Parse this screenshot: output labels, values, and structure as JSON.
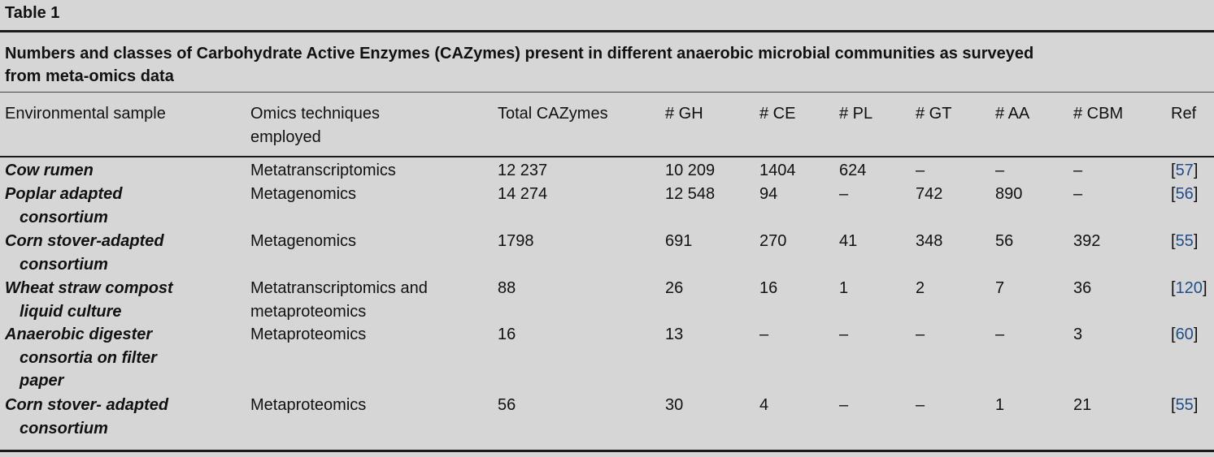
{
  "table_label": "Table 1",
  "caption_line1": "Numbers and classes of Carbohydrate Active Enzymes (CAZymes) present in different anaerobic microbial communities as surveyed",
  "caption_line2": "from meta-omics data",
  "headers": {
    "sample": "Environmental sample",
    "omics_line1": "Omics techniques",
    "omics_line2": "employed",
    "total": "Total CAZymes",
    "gh": "# GH",
    "ce": "# CE",
    "pl": "# PL",
    "gt": "# GT",
    "aa": "# AA",
    "cbm": "# CBM",
    "ref": "Ref"
  },
  "rows": [
    {
      "sample_lines": [
        "Cow rumen"
      ],
      "omics_lines": [
        "Metatranscriptomics"
      ],
      "total": "12 237",
      "gh": "10 209",
      "ce": "1404",
      "pl": "624",
      "gt": "–",
      "aa": "–",
      "cbm": "–",
      "ref": "57"
    },
    {
      "sample_lines": [
        "Poplar adapted",
        "consortium"
      ],
      "omics_lines": [
        "Metagenomics"
      ],
      "total": "14 274",
      "gh": "12 548",
      "ce": "94",
      "pl": "–",
      "gt": "742",
      "aa": "890",
      "cbm": "–",
      "ref": "56"
    },
    {
      "sample_lines": [
        "Corn stover-adapted",
        "consortium"
      ],
      "omics_lines": [
        "Metagenomics"
      ],
      "total": "1798",
      "gh": "691",
      "ce": "270",
      "pl": "41",
      "gt": "348",
      "aa": "56",
      "cbm": "392",
      "ref": "55"
    },
    {
      "sample_lines": [
        "Wheat straw compost",
        "liquid culture"
      ],
      "omics_lines": [
        "Metatranscriptomics and",
        "metaproteomics"
      ],
      "total": "88",
      "gh": "26",
      "ce": "16",
      "pl": "1",
      "gt": "2",
      "aa": "7",
      "cbm": "36",
      "ref": "120"
    },
    {
      "sample_lines": [
        "Anaerobic digester",
        "consortia on filter",
        "paper"
      ],
      "omics_lines": [
        "Metaproteomics"
      ],
      "total": "16",
      "gh": "13",
      "ce": "–",
      "pl": "–",
      "gt": "–",
      "aa": "–",
      "cbm": "3",
      "ref": "60"
    },
    {
      "sample_lines": [
        "Corn stover- adapted",
        "consortium"
      ],
      "omics_lines": [
        "Metaproteomics"
      ],
      "total": "56",
      "gh": "30",
      "ce": "4",
      "pl": "–",
      "gt": "–",
      "aa": "1",
      "cbm": "21",
      "ref": "55"
    }
  ]
}
